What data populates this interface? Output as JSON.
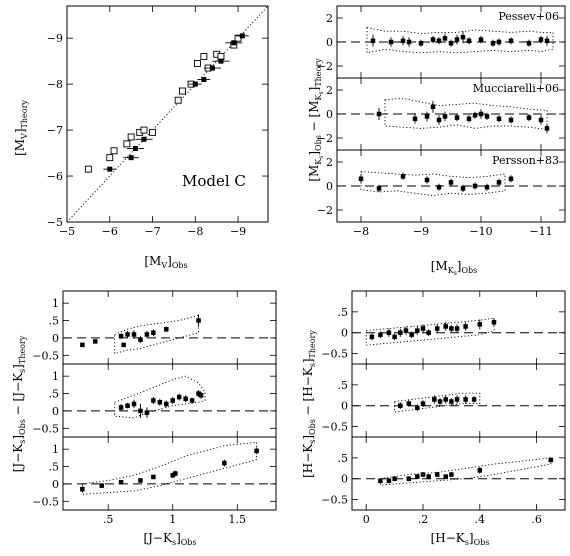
{
  "chart_data": [
    {
      "id": "mv",
      "type": "scatter",
      "xlabel": "[M_V]_Obs",
      "ylabel": "[M_V]_Theory",
      "xlim": [
        -5,
        -9.7
      ],
      "ylim": [
        -5,
        -9.7
      ],
      "xticks": [
        -5,
        -6,
        -7,
        -8,
        -9
      ],
      "yticks": [
        -5,
        -6,
        -7,
        -8,
        -9
      ],
      "annotation": "Model C",
      "one_to_one_line": true,
      "series": [
        {
          "marker": "filled-square",
          "x": [
            -6.0,
            -6.5,
            -6.6,
            -6.8,
            -8.0,
            -8.2,
            -8.4,
            -8.6,
            -8.9,
            -9.1
          ],
          "y": [
            -6.15,
            -6.4,
            -6.6,
            -6.8,
            -8.0,
            -8.1,
            -8.35,
            -8.5,
            -8.9,
            -9.05
          ],
          "xerr": [
            0.15,
            0.18,
            0.2,
            0.2,
            0.15,
            0.15,
            0.2,
            0.2,
            0.2,
            0.15
          ]
        },
        {
          "marker": "open-square",
          "x": [
            -5.5,
            -6.0,
            -6.1,
            -6.4,
            -6.5,
            -6.7,
            -6.8,
            -7.0,
            -7.6,
            -7.7,
            -7.9,
            -8.05,
            -8.2,
            -8.3,
            -8.5,
            -8.6,
            -8.9,
            -9.0
          ],
          "y": [
            -6.15,
            -6.4,
            -6.55,
            -6.7,
            -6.85,
            -6.95,
            -7.0,
            -6.95,
            -7.65,
            -7.85,
            -8.0,
            -8.45,
            -8.6,
            -8.35,
            -8.65,
            -8.6,
            -8.85,
            -9.0
          ]
        }
      ]
    },
    {
      "id": "mk",
      "type": "scatter",
      "shared_x": true,
      "xlabel": "[M_Ks]_Obs",
      "ylabel": "[M_Ks]_Obs − [M_Ks]_Theory",
      "xlim": [
        -7.6,
        -11.4
      ],
      "ylim": [
        -3,
        3
      ],
      "xticks": [
        -8,
        -9,
        -10,
        -11
      ],
      "yticks": [
        -2,
        0,
        2
      ],
      "panels": [
        {
          "label": "Pessev+06",
          "x": [
            -8.2,
            -8.5,
            -8.7,
            -8.8,
            -9.0,
            -9.2,
            -9.3,
            -9.4,
            -9.5,
            -9.6,
            -9.7,
            -9.8,
            -10.0,
            -10.2,
            -10.3,
            -10.5,
            -10.8,
            -11.0,
            -11.1
          ],
          "y": [
            0.1,
            0.0,
            0.1,
            0.0,
            -0.1,
            0.2,
            0.1,
            0.3,
            -0.1,
            0.2,
            0.4,
            0.1,
            0.2,
            -0.1,
            0.0,
            0.1,
            -0.1,
            0.2,
            0.1
          ],
          "yerr": [
            0.5,
            0.4,
            0.4,
            0.4,
            0.3,
            0.3,
            0.3,
            0.4,
            0.3,
            0.4,
            0.5,
            0.3,
            0.3,
            0.3,
            0.3,
            0.3,
            0.3,
            0.3,
            0.4
          ],
          "band_upper": [
            1.2,
            0.9,
            0.9,
            0.7,
            0.8,
            0.8,
            1.0,
            0.9,
            0.8,
            0.9,
            0.8,
            0.8
          ],
          "band_lower": [
            -0.9,
            -0.6,
            -0.8,
            -0.9,
            -0.8,
            -0.9,
            -0.8,
            -0.7,
            -0.8,
            -0.7,
            -0.8,
            -0.6
          ],
          "band_x": [
            -8.1,
            -8.4,
            -8.7,
            -9.0,
            -9.3,
            -9.6,
            -9.9,
            -10.2,
            -10.5,
            -10.8,
            -11.0,
            -11.2
          ]
        },
        {
          "label": "Mucciarelli+06",
          "x": [
            -8.3,
            -8.9,
            -9.1,
            -9.2,
            -9.3,
            -9.4,
            -9.6,
            -9.8,
            -9.9,
            -10.0,
            -10.1,
            -10.3,
            -10.5,
            -10.8,
            -11.0,
            -11.1
          ],
          "y": [
            0.0,
            -0.4,
            -0.2,
            0.6,
            -0.5,
            -0.2,
            -0.3,
            -0.4,
            -0.1,
            0.0,
            -0.2,
            -0.4,
            -0.5,
            -0.3,
            -0.5,
            -1.2
          ],
          "yerr": [
            0.5,
            0.4,
            0.4,
            0.5,
            0.4,
            0.4,
            0.3,
            0.3,
            0.3,
            0.4,
            0.3,
            0.3,
            0.3,
            0.3,
            0.4,
            0.4
          ],
          "band_upper": [
            1.2,
            1.3,
            1.0,
            0.7,
            0.8,
            0.9,
            0.7,
            0.6,
            0.4,
            0.3
          ],
          "band_lower": [
            -1.0,
            -1.1,
            -1.2,
            -1.1,
            -0.9,
            -1.2,
            -1.0,
            -1.0,
            -1.1,
            -1.3
          ],
          "band_x": [
            -8.4,
            -8.7,
            -9.0,
            -9.3,
            -9.6,
            -9.9,
            -10.2,
            -10.5,
            -10.8,
            -11.1
          ]
        },
        {
          "label": "Persson+83",
          "x": [
            -8.0,
            -8.3,
            -8.7,
            -9.1,
            -9.3,
            -9.5,
            -9.7,
            -9.9,
            -10.1,
            -10.3,
            -10.5
          ],
          "y": [
            0.6,
            -0.2,
            0.8,
            0.5,
            -0.1,
            0.3,
            -0.2,
            0.0,
            -0.1,
            0.3,
            0.6
          ],
          "yerr": [
            0.4,
            0.3,
            0.3,
            0.3,
            0.3,
            0.3,
            0.3,
            0.3,
            0.3,
            0.3,
            0.3
          ],
          "band_upper": [
            1.2,
            1.1,
            1.0,
            0.9,
            1.0,
            0.8,
            0.7,
            0.8,
            1.0
          ],
          "band_lower": [
            -0.3,
            -0.5,
            -0.4,
            -0.6,
            -0.8,
            -0.6,
            -0.7,
            -0.6,
            -0.4
          ],
          "band_x": [
            -8.0,
            -8.3,
            -8.6,
            -8.9,
            -9.2,
            -9.5,
            -9.8,
            -10.1,
            -10.4
          ]
        }
      ]
    },
    {
      "id": "jk",
      "type": "scatter",
      "shared_x": true,
      "xlabel": "[J−Ks]_Obs",
      "ylabel": "[J−Ks]_Obs − [J−Ks]_Theory",
      "xlim": [
        0.15,
        1.8
      ],
      "ylim": [
        -0.75,
        1.35
      ],
      "xticks": [
        0.5,
        1,
        1.5
      ],
      "yticks": [
        -0.5,
        0,
        0.5,
        1
      ],
      "panels": [
        {
          "x": [
            0.3,
            0.4,
            0.6,
            0.62,
            0.65,
            0.7,
            0.75,
            0.8,
            0.85,
            0.95,
            1.2
          ],
          "y": [
            -0.2,
            -0.1,
            0.05,
            -0.2,
            0.1,
            0.1,
            -0.05,
            0.1,
            0.15,
            0.25,
            0.5
          ],
          "yerr": [
            0.06,
            0.05,
            0.08,
            0.06,
            0.1,
            0.12,
            0.1,
            0.1,
            0.1,
            0.08,
            0.18
          ],
          "band_upper": [
            0.1,
            0.25,
            0.35,
            0.4,
            0.45,
            0.5,
            0.65
          ],
          "band_lower": [
            -0.45,
            -0.35,
            -0.3,
            -0.2,
            -0.1,
            0.0,
            0.15
          ],
          "band_x": [
            0.55,
            0.65,
            0.75,
            0.85,
            0.95,
            1.05,
            1.2
          ]
        },
        {
          "x": [
            0.6,
            0.65,
            0.7,
            0.75,
            0.8,
            0.85,
            0.9,
            0.95,
            1.0,
            1.05,
            1.1,
            1.15,
            1.2,
            1.22
          ],
          "y": [
            0.1,
            0.15,
            0.2,
            0.0,
            -0.05,
            0.3,
            0.25,
            0.2,
            0.3,
            0.4,
            0.35,
            0.3,
            0.5,
            0.45
          ],
          "yerr": [
            0.1,
            0.08,
            0.12,
            0.2,
            0.15,
            0.1,
            0.1,
            0.1,
            0.1,
            0.1,
            0.1,
            0.08,
            0.1,
            0.1
          ],
          "band_upper": [
            0.25,
            0.45,
            0.6,
            0.75,
            0.9,
            1.0,
            0.8,
            0.55
          ],
          "band_lower": [
            -0.15,
            -0.2,
            -0.05,
            0.05,
            0.15,
            0.2,
            0.25,
            0.3
          ],
          "band_x": [
            0.55,
            0.7,
            0.8,
            0.9,
            1.0,
            1.1,
            1.2,
            1.25
          ]
        },
        {
          "x": [
            0.3,
            0.45,
            0.6,
            0.75,
            0.85,
            1.0,
            1.02,
            1.4,
            1.65
          ],
          "y": [
            -0.15,
            -0.05,
            0.05,
            0.1,
            0.2,
            0.25,
            0.3,
            0.6,
            0.95
          ],
          "yerr": [
            0.08,
            0.06,
            0.06,
            0.06,
            0.06,
            0.08,
            0.08,
            0.1,
            0.1
          ],
          "band_upper": [
            0.0,
            0.1,
            0.25,
            0.5,
            0.8,
            1.1,
            1.2
          ],
          "band_lower": [
            -0.3,
            -0.25,
            -0.2,
            -0.05,
            0.15,
            0.45,
            0.7
          ],
          "band_x": [
            0.3,
            0.5,
            0.7,
            0.9,
            1.1,
            1.4,
            1.65
          ]
        }
      ]
    },
    {
      "id": "hk",
      "type": "scatter",
      "shared_x": true,
      "xlabel": "[H−Ks]_Obs",
      "ylabel": "[H−Ks]_Obs − [H−Ks]_Theory",
      "xlim": [
        -0.05,
        0.7
      ],
      "ylim": [
        -0.75,
        1.0
      ],
      "xticks": [
        0,
        0.2,
        0.4,
        0.6
      ],
      "yticks": [
        -0.5,
        0,
        0.5
      ],
      "panels": [
        {
          "x": [
            0.02,
            0.05,
            0.08,
            0.1,
            0.12,
            0.14,
            0.16,
            0.18,
            0.2,
            0.22,
            0.25,
            0.28,
            0.3,
            0.32,
            0.35,
            0.4,
            0.45
          ],
          "y": [
            -0.1,
            -0.05,
            0.0,
            -0.1,
            0.0,
            0.05,
            -0.05,
            0.05,
            0.1,
            0.0,
            0.1,
            0.15,
            0.1,
            0.1,
            0.15,
            0.2,
            0.25
          ],
          "yerr": [
            0.08,
            0.08,
            0.1,
            0.08,
            0.1,
            0.1,
            0.08,
            0.1,
            0.1,
            0.08,
            0.1,
            0.1,
            0.08,
            0.1,
            0.1,
            0.12,
            0.1
          ],
          "band_upper": [
            0.05,
            0.1,
            0.15,
            0.2,
            0.25,
            0.3,
            0.35
          ],
          "band_lower": [
            -0.3,
            -0.25,
            -0.2,
            -0.15,
            -0.1,
            -0.05,
            0.05
          ],
          "band_x": [
            0.0,
            0.08,
            0.16,
            0.24,
            0.32,
            0.4,
            0.45
          ]
        },
        {
          "x": [
            0.12,
            0.15,
            0.18,
            0.2,
            0.24,
            0.26,
            0.28,
            0.3,
            0.32,
            0.35,
            0.38
          ],
          "y": [
            0.0,
            0.05,
            -0.05,
            0.05,
            0.15,
            0.1,
            0.15,
            0.1,
            0.15,
            0.15,
            0.15
          ],
          "yerr": [
            0.08,
            0.08,
            0.08,
            0.08,
            0.1,
            0.08,
            0.1,
            0.08,
            0.1,
            0.1,
            0.08
          ],
          "band_upper": [
            0.1,
            0.15,
            0.2,
            0.25,
            0.3,
            0.3
          ],
          "band_lower": [
            -0.15,
            -0.1,
            -0.05,
            0.0,
            0.05,
            0.05
          ],
          "band_x": [
            0.1,
            0.16,
            0.22,
            0.28,
            0.34,
            0.4
          ]
        },
        {
          "x": [
            0.05,
            0.08,
            0.1,
            0.15,
            0.18,
            0.2,
            0.22,
            0.25,
            0.28,
            0.3,
            0.4,
            0.65
          ],
          "y": [
            -0.05,
            -0.05,
            0.0,
            0.0,
            0.05,
            0.1,
            0.05,
            0.1,
            0.05,
            0.1,
            0.2,
            0.45
          ],
          "yerr": [
            0.06,
            0.06,
            0.06,
            0.06,
            0.06,
            0.06,
            0.06,
            0.06,
            0.06,
            0.06,
            0.08,
            0.06
          ],
          "band_upper": [
            0.0,
            0.1,
            0.15,
            0.25,
            0.35,
            0.5
          ],
          "band_lower": [
            -0.15,
            -0.1,
            -0.05,
            0.0,
            0.1,
            0.35
          ],
          "band_x": [
            0.05,
            0.15,
            0.25,
            0.35,
            0.45,
            0.65
          ]
        }
      ]
    }
  ]
}
